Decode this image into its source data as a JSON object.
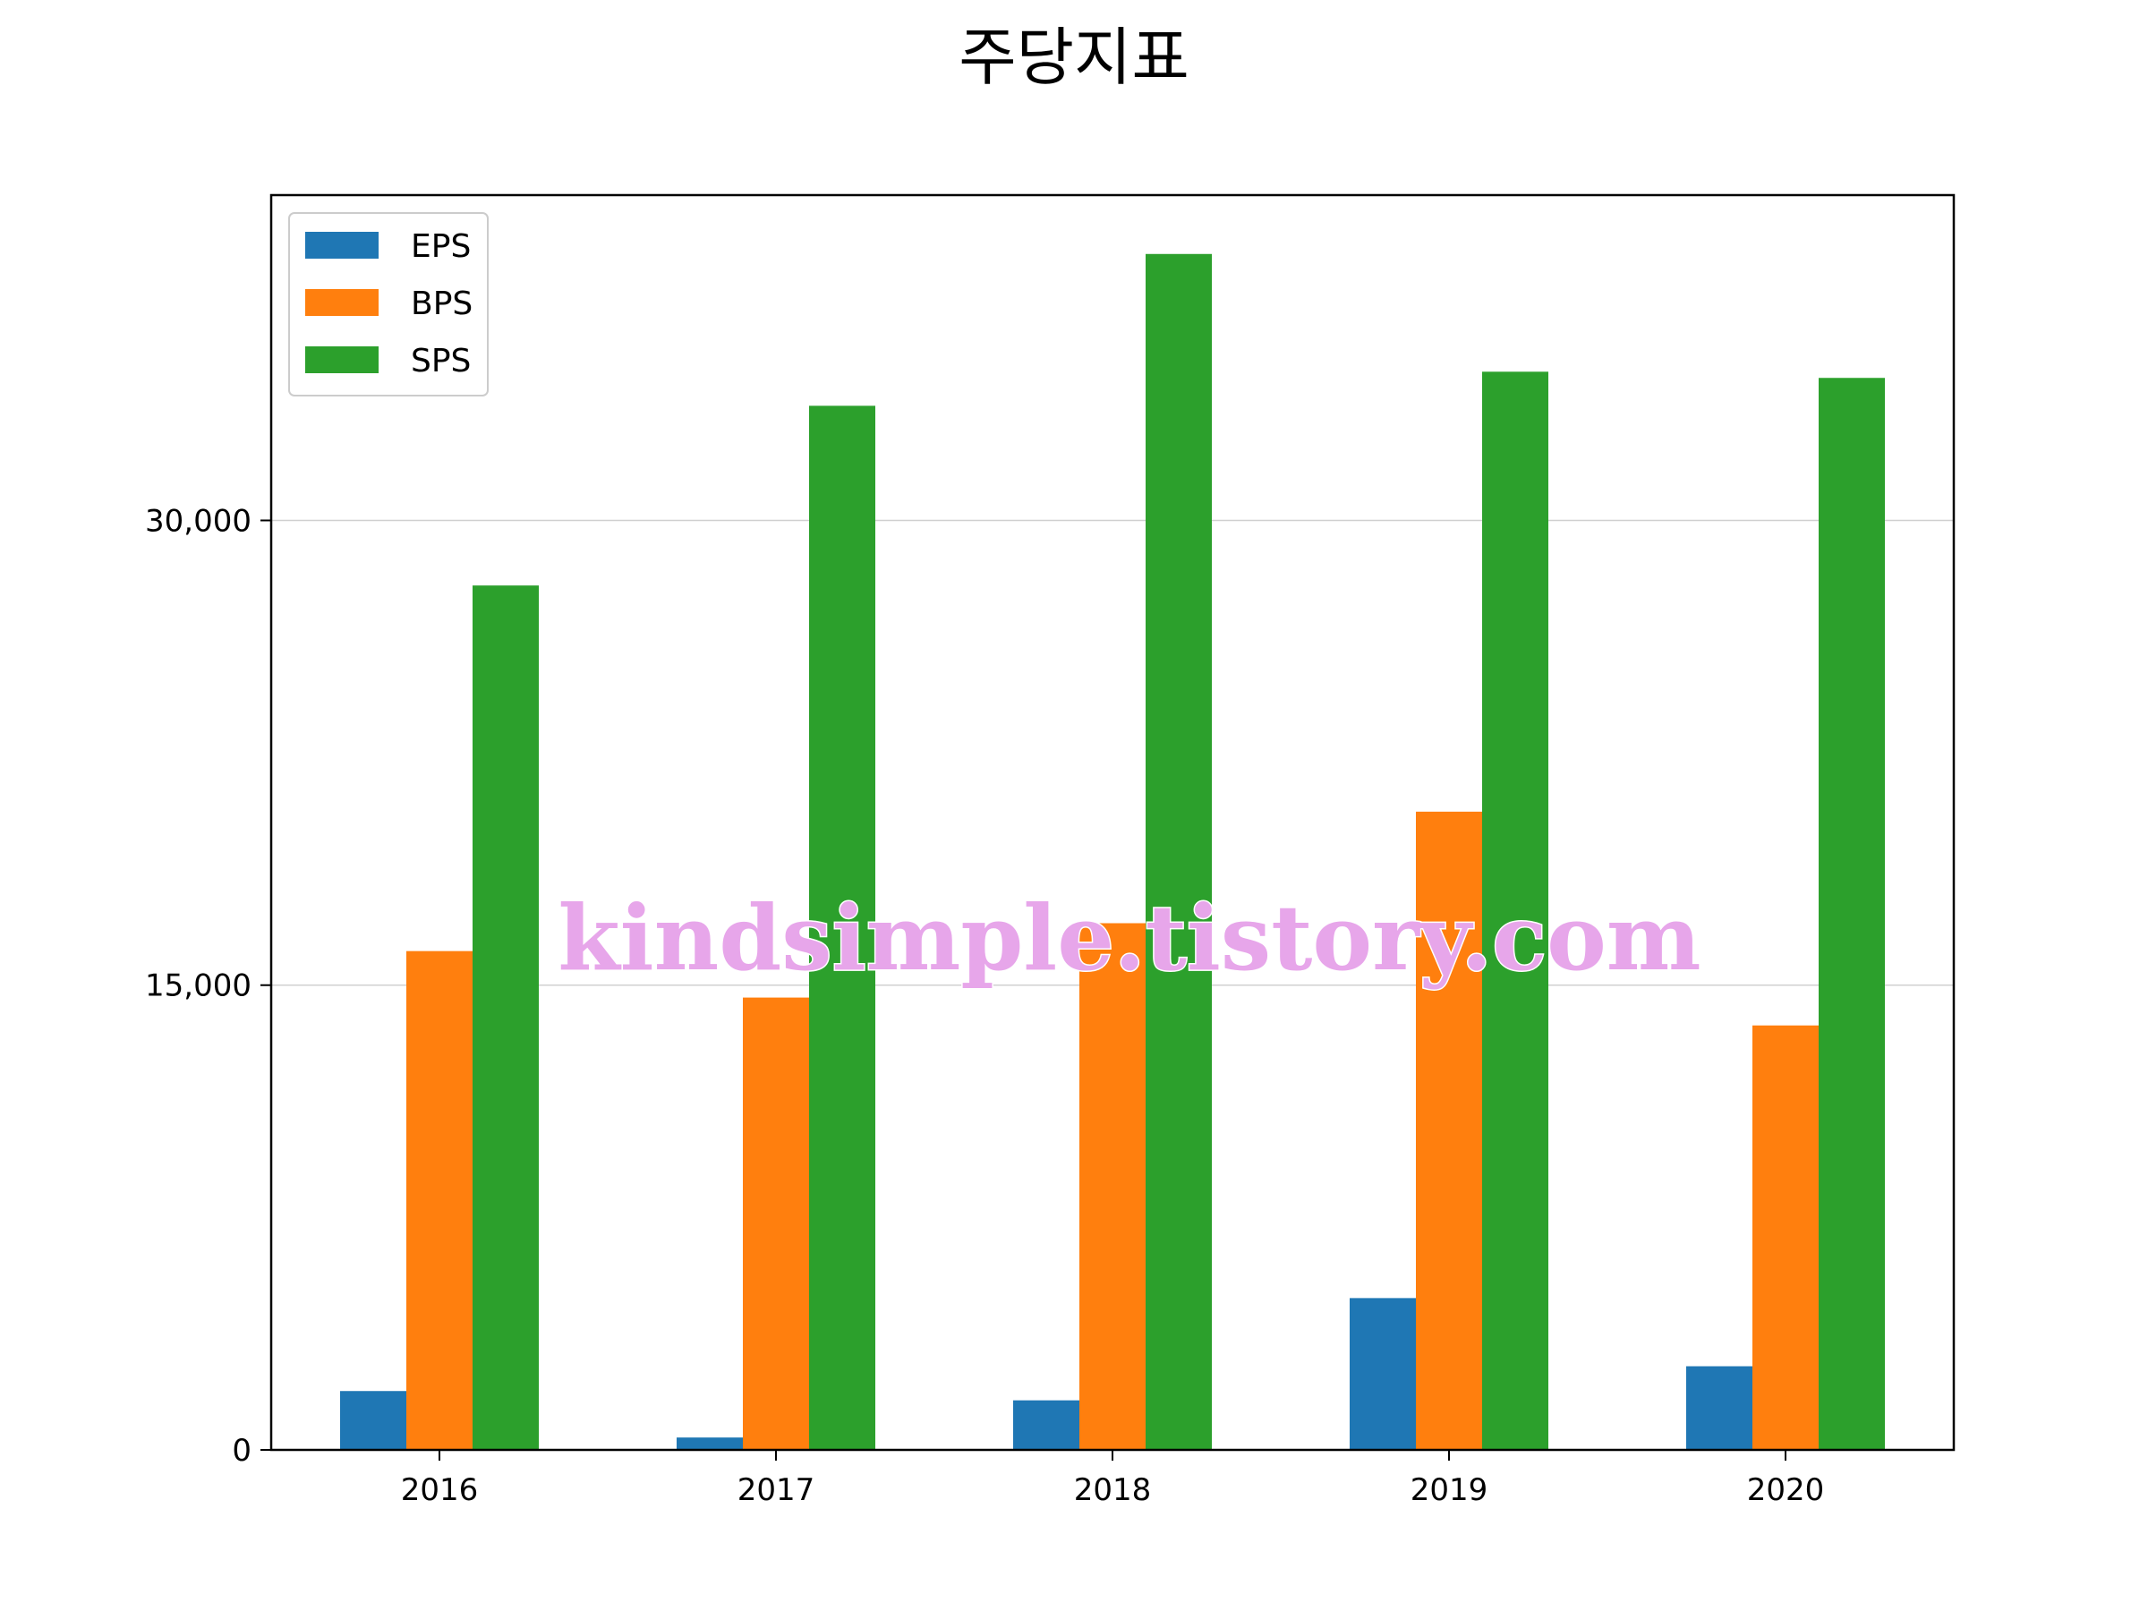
{
  "chart_data": {
    "type": "bar",
    "title": "주당지표",
    "xlabel": "",
    "ylabel": "",
    "categories": [
      "2016",
      "2017",
      "2018",
      "2019",
      "2020"
    ],
    "series": [
      {
        "name": "EPS",
        "color": "#1f77b4",
        "values": [
          1900,
          400,
          1600,
          4900,
          2700
        ]
      },
      {
        "name": "BPS",
        "color": "#ff7f0e",
        "values": [
          16100,
          14600,
          17000,
          20600,
          13700
        ]
      },
      {
        "name": "SPS",
        "color": "#2ca02c",
        "values": [
          27900,
          33700,
          38600,
          34800,
          34600
        ]
      }
    ],
    "ylim": [
      0,
      40500
    ],
    "yticks": [
      0,
      15000,
      30000
    ],
    "ytick_labels": [
      "0",
      "15,000",
      "30,000"
    ],
    "grid": "horizontal",
    "legend_position": "top-left"
  },
  "watermark": "kindsimple.tistory.com"
}
